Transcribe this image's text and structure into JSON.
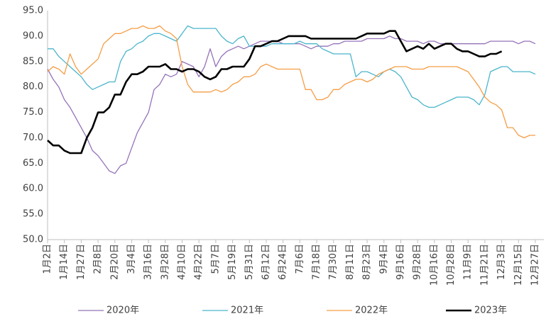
{
  "chart_data": {
    "type": "line",
    "categories": [
      "1月2日",
      null,
      null,
      "1月14日",
      null,
      null,
      "1月27日",
      null,
      null,
      "2月8日",
      null,
      null,
      "2月20日",
      null,
      null,
      "3月4日",
      null,
      null,
      "3月16日",
      null,
      null,
      "3月28日",
      null,
      null,
      "4月10日",
      null,
      null,
      "4月22日",
      null,
      null,
      "5月7日",
      null,
      null,
      "5月19日",
      null,
      null,
      "5月31日",
      null,
      null,
      "6月12日",
      null,
      null,
      "6月24日",
      null,
      null,
      "7月6日",
      null,
      null,
      "7月18日",
      null,
      null,
      "7月30日",
      null,
      null,
      "8月11日",
      null,
      null,
      "8月23日",
      null,
      null,
      "9月4日",
      null,
      null,
      "9月16日",
      null,
      null,
      "9月28日",
      null,
      null,
      "10月16日",
      null,
      null,
      "10月28日",
      null,
      null,
      "11月9日",
      null,
      null,
      "11月21日",
      null,
      null,
      "12月3日",
      null,
      null,
      "12月15日",
      null,
      null,
      "12月27日"
    ],
    "series": [
      {
        "name": "2020年",
        "color": "#9573b8",
        "width": 1.3,
        "values": [
          83.5,
          81.5,
          80,
          77.5,
          76,
          74,
          72,
          70,
          67.5,
          66.5,
          65,
          63.5,
          63,
          64.5,
          65,
          68,
          71,
          73,
          75,
          79.5,
          80.5,
          82.5,
          82,
          82.5,
          85,
          84.5,
          84,
          82,
          84,
          87.5,
          84,
          86,
          87,
          87.5,
          88,
          87.5,
          88,
          88.5,
          89,
          89,
          89,
          89,
          88.5,
          88.5,
          88.5,
          88.5,
          88,
          87.5,
          88,
          88,
          88,
          88.5,
          88.5,
          89,
          89,
          89,
          89,
          89.5,
          89.5,
          89.5,
          89.5,
          90,
          89.5,
          89.5,
          89,
          89,
          89,
          88.5,
          89,
          89,
          88.5,
          88.5,
          88.5,
          88.5,
          88.5,
          88.5,
          88.5,
          88.5,
          88.5,
          89,
          89,
          89,
          89,
          89,
          88.5,
          89,
          89,
          88.5
        ]
      },
      {
        "name": "2021年",
        "color": "#4bb5cc",
        "width": 1.3,
        "values": [
          87.5,
          87.5,
          86,
          85,
          84,
          83,
          82,
          80.5,
          79.5,
          80,
          80.5,
          81,
          81,
          85,
          87,
          87.5,
          88.5,
          89,
          90,
          90.5,
          90.5,
          90,
          89.5,
          89,
          90.5,
          92,
          91.5,
          91.5,
          91.5,
          91.5,
          91.5,
          90,
          89,
          88.5,
          89.5,
          90,
          88,
          88,
          88,
          88,
          88.5,
          88.5,
          88.5,
          88.5,
          88.5,
          89,
          88.5,
          88.5,
          88.5,
          87.5,
          87,
          86.5,
          86.5,
          86.5,
          86.5,
          82,
          83,
          83,
          82.5,
          82,
          83,
          83.5,
          83,
          82,
          80,
          78,
          77.5,
          76.5,
          76,
          76,
          76.5,
          77,
          77.5,
          78,
          78,
          78,
          77.5,
          76.5,
          78.5,
          83,
          83.5,
          84,
          84,
          83,
          83,
          83,
          83,
          82.5
        ]
      },
      {
        "name": "2022年",
        "color": "#f59d45",
        "width": 1.3,
        "values": [
          83,
          84,
          83.5,
          82.5,
          86.5,
          84,
          82.5,
          83.5,
          84.5,
          85.5,
          88.5,
          89.5,
          90.5,
          90.5,
          91,
          91.5,
          91.5,
          92,
          91.5,
          91.5,
          92,
          91,
          90.5,
          89.5,
          84,
          80.5,
          79,
          79,
          79,
          79,
          79.5,
          79,
          79.5,
          80.5,
          81,
          82,
          82,
          82.5,
          84,
          84.5,
          84,
          83.5,
          83.5,
          83.5,
          83.5,
          83.5,
          79.5,
          79.5,
          77.5,
          77.5,
          78,
          79.5,
          79.5,
          80.5,
          81,
          81.5,
          81.5,
          81,
          81.5,
          82.5,
          83,
          83.5,
          84,
          84,
          84,
          83.5,
          83.5,
          83.5,
          84,
          84,
          84,
          84,
          84,
          84,
          83.5,
          83,
          81.5,
          80,
          78,
          77,
          76.5,
          75.5,
          72,
          72,
          70.5,
          70,
          70.5,
          70.5
        ]
      },
      {
        "name": "2023年",
        "color": "#000000",
        "width": 2.6,
        "values": [
          69.5,
          68.5,
          68.5,
          67.5,
          67,
          67,
          67,
          70,
          72,
          75,
          75,
          76,
          78.5,
          78.5,
          81,
          82.5,
          82.5,
          83,
          84,
          84,
          84,
          84.5,
          83.5,
          83.5,
          83,
          83.5,
          83.5,
          83,
          82,
          81.5,
          82,
          83.5,
          83.5,
          84,
          84,
          84,
          85.5,
          88,
          88,
          88.5,
          89,
          89,
          89.5,
          90,
          90,
          90,
          90,
          89.5,
          89.5,
          89.5,
          89.5,
          89.5,
          89.5,
          89.5,
          89.5,
          89.5,
          90,
          90.5,
          90.5,
          90.5,
          90.5,
          91,
          91,
          89,
          87,
          87.5,
          88,
          87.5,
          88.5,
          87.5,
          88,
          88.5,
          88.5,
          87.5,
          87,
          87,
          86.5,
          86,
          86,
          86.5,
          86.5,
          87,
          null,
          null,
          null,
          null,
          null,
          null
        ]
      }
    ],
    "ylim": [
      50,
      95
    ],
    "yticks": [
      {
        "value": 50,
        "label": "50.0"
      },
      {
        "value": 55,
        "label": "55.0"
      },
      {
        "value": 60,
        "label": "60.0"
      },
      {
        "value": 65,
        "label": "65.0"
      },
      {
        "value": 70,
        "label": "70.0"
      },
      {
        "value": 75,
        "label": "75.0"
      },
      {
        "value": 80,
        "label": "80.0"
      },
      {
        "value": 85,
        "label": "85.0"
      },
      {
        "value": 90,
        "label": "90.0"
      },
      {
        "value": 95,
        "label": "95.0"
      }
    ],
    "grid": false,
    "legend": "bottom"
  }
}
